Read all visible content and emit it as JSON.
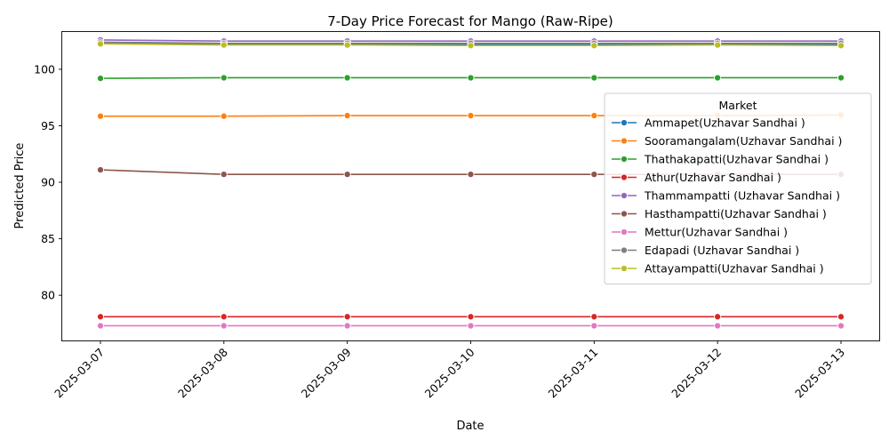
{
  "chart_data": {
    "type": "line",
    "title": "7-Day Price Forecast for Mango (Raw-Ripe)",
    "xlabel": "Date",
    "ylabel": "Predicted Price",
    "x": [
      "2025-03-07",
      "2025-03-08",
      "2025-03-09",
      "2025-03-10",
      "2025-03-11",
      "2025-03-12",
      "2025-03-13"
    ],
    "ylim": [
      76.0,
      103.3
    ],
    "yticks": [
      80,
      85,
      90,
      95,
      100
    ],
    "grid": false,
    "legend": {
      "title": "Market",
      "placement": "right"
    },
    "series": [
      {
        "name": "Ammapet(Uzhavar Sandhai )",
        "color": "#1f77b4",
        "values": [
          102.3,
          102.2,
          102.2,
          102.2,
          102.2,
          102.2,
          102.2
        ]
      },
      {
        "name": "Sooramangalam(Uzhavar Sandhai )",
        "color": "#ff7f0e",
        "values": [
          95.85,
          95.85,
          95.9,
          95.9,
          95.9,
          95.9,
          95.95
        ]
      },
      {
        "name": "Thathakapatti(Uzhavar Sandhai )",
        "color": "#2ca02c",
        "values": [
          99.2,
          99.25,
          99.25,
          99.25,
          99.25,
          99.25,
          99.25
        ]
      },
      {
        "name": "Athur(Uzhavar Sandhai )",
        "color": "#d62728",
        "values": [
          78.1,
          78.1,
          78.1,
          78.1,
          78.1,
          78.1,
          78.1
        ]
      },
      {
        "name": "Thammampatti (Uzhavar Sandhai )",
        "color": "#9467bd",
        "values": [
          102.6,
          102.5,
          102.5,
          102.5,
          102.5,
          102.5,
          102.5
        ]
      },
      {
        "name": "Hasthampatti(Uzhavar Sandhai )",
        "color": "#8c564b",
        "values": [
          91.1,
          90.7,
          90.7,
          90.7,
          90.7,
          90.7,
          90.7
        ]
      },
      {
        "name": "Mettur(Uzhavar Sandhai )",
        "color": "#e377c2",
        "values": [
          77.3,
          77.3,
          77.3,
          77.3,
          77.3,
          77.3,
          77.3
        ]
      },
      {
        "name": "Edapadi (Uzhavar Sandhai )",
        "color": "#7f7f7f",
        "values": [
          102.4,
          102.3,
          102.3,
          102.3,
          102.3,
          102.3,
          102.3
        ]
      },
      {
        "name": "Attayampatti(Uzhavar Sandhai )",
        "color": "#bcbd22",
        "values": [
          102.25,
          102.15,
          102.15,
          102.1,
          102.1,
          102.15,
          102.1
        ]
      }
    ]
  }
}
